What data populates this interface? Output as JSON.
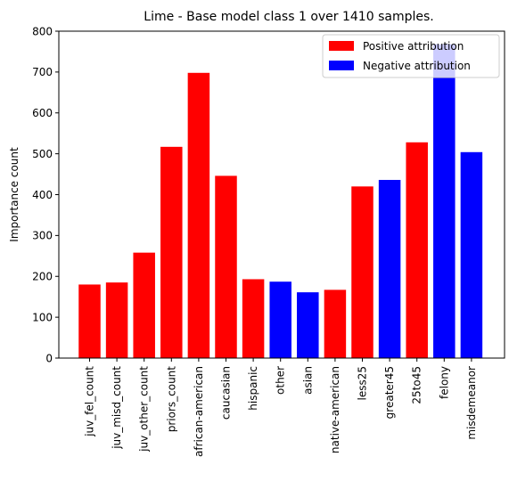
{
  "chart_data": {
    "type": "bar",
    "title": "Lime - Base model class 1 over 1410 samples.",
    "xlabel": "",
    "ylabel": "Importance count",
    "ylim": [
      0,
      800
    ],
    "yticks": [
      0,
      100,
      200,
      300,
      400,
      500,
      600,
      700,
      800
    ],
    "grid": false,
    "legend_placement": "top-right",
    "categories": [
      "juv_fel_count",
      "juv_misd_count",
      "juv_other_count",
      "priors_count",
      "african-american",
      "caucasian",
      "hispanic",
      "other",
      "asian",
      "native-american",
      "less25",
      "greater45",
      "25to45",
      "felony",
      "misdemeanor"
    ],
    "values": [
      180,
      185,
      258,
      517,
      698,
      446,
      193,
      187,
      161,
      167,
      420,
      436,
      528,
      768,
      504
    ],
    "attribution": [
      "positive",
      "positive",
      "positive",
      "positive",
      "positive",
      "positive",
      "positive",
      "negative",
      "negative",
      "positive",
      "positive",
      "negative",
      "positive",
      "negative",
      "negative"
    ],
    "series": [
      {
        "name": "Positive attribution",
        "key": "positive",
        "color": "#ff0000"
      },
      {
        "name": "Negative attribution",
        "key": "negative",
        "color": "#0000ff"
      }
    ]
  }
}
